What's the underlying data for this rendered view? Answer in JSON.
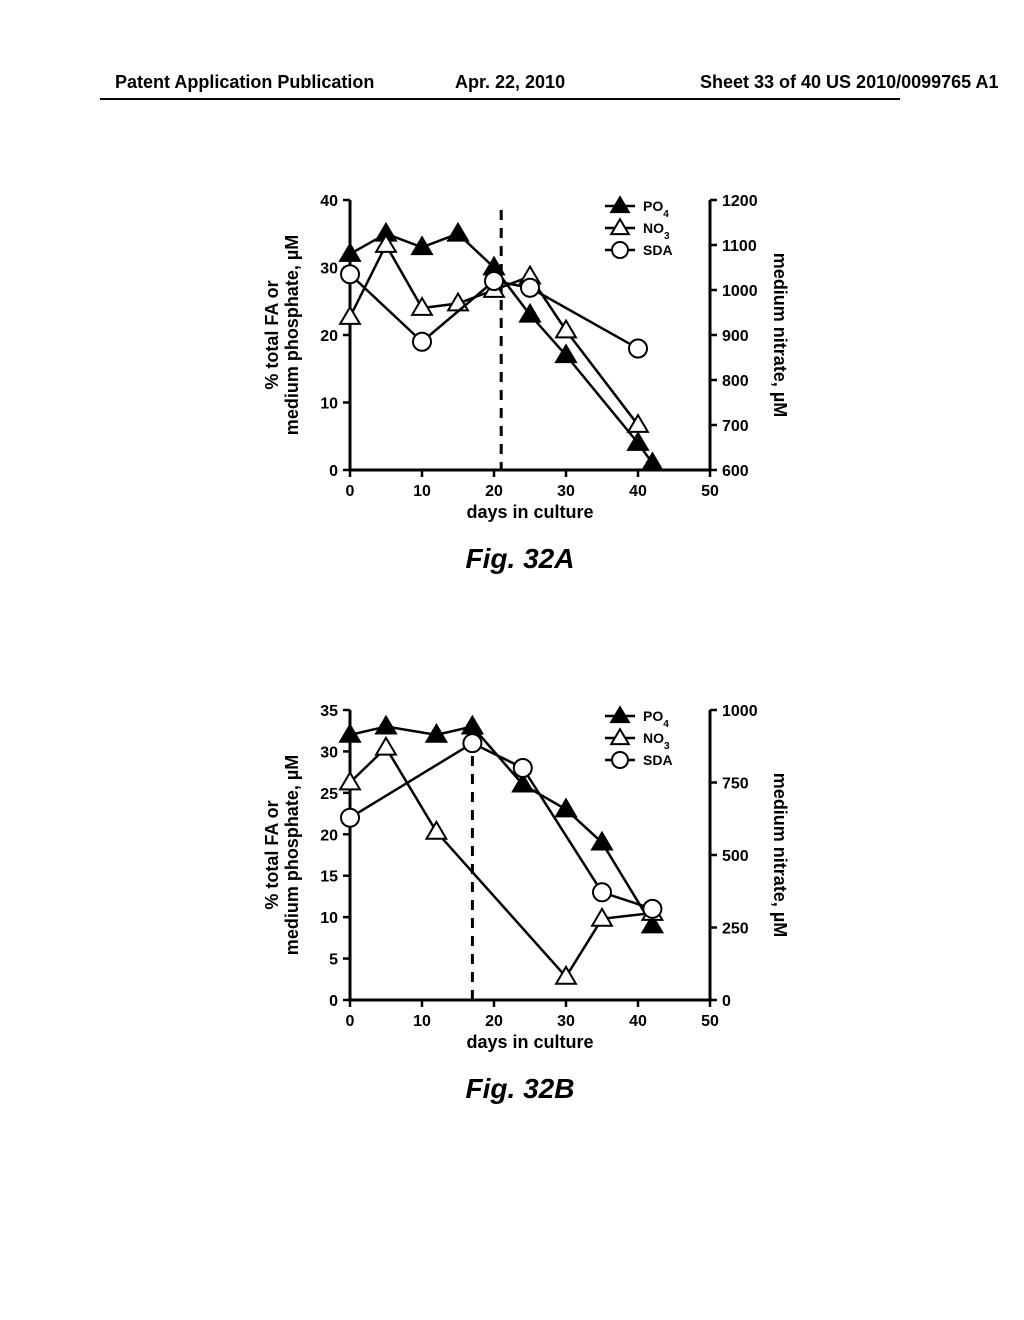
{
  "header": {
    "left": "Patent Application Publication",
    "center": "Apr. 22, 2010",
    "right": "Sheet 33 of 40     US 2010/0099765 A1"
  },
  "figA": {
    "caption": "Fig. 32A",
    "xlabel": "days in culture",
    "ylabel_left": "% total FA or\nmedium phosphate, µM",
    "ylabel_right": "medium nitrate, µM",
    "vline_x": 21,
    "xlim": [
      0,
      50
    ],
    "xtick_step": 10,
    "ylim_left": [
      0,
      40
    ],
    "ytick_left_step": 10,
    "ylim_right": [
      600,
      1200
    ],
    "ytick_right_step": 100,
    "label_fontsize": 18,
    "tick_fontsize": 16,
    "legend_fontsize": 14,
    "line_width": 2.5,
    "marker_size": 9,
    "background_color": "#ffffff",
    "axis_color": "#000000",
    "series": [
      {
        "name": "PO4",
        "sub": "4",
        "marker": "triangle-filled",
        "color": "#000000",
        "fill": "#000000",
        "axis": "left",
        "x": [
          0,
          5,
          10,
          15,
          20,
          25,
          30,
          40,
          42
        ],
        "y": [
          32,
          35,
          33,
          35,
          30,
          23,
          17,
          4,
          1
        ]
      },
      {
        "name": "NO3",
        "sub": "3",
        "marker": "triangle-open",
        "color": "#000000",
        "fill": "#ffffff",
        "axis": "right",
        "x": [
          0,
          5,
          10,
          15,
          20,
          25,
          30,
          40
        ],
        "y": [
          940,
          1100,
          960,
          970,
          1000,
          1030,
          910,
          700
        ]
      },
      {
        "name": "SDA",
        "sub": "",
        "marker": "circle-open",
        "color": "#000000",
        "fill": "#ffffff",
        "axis": "left",
        "x": [
          0,
          10,
          20,
          25,
          40
        ],
        "y": [
          29,
          19,
          28,
          27,
          18
        ]
      }
    ]
  },
  "figB": {
    "caption": "Fig. 32B",
    "xlabel": "days in culture",
    "ylabel_left": "% total FA or\nmedium phosphate, µM",
    "ylabel_right": "medium nitrate, µM",
    "vline_x": 17,
    "xlim": [
      0,
      50
    ],
    "xtick_step": 10,
    "ylim_left": [
      0,
      35
    ],
    "ytick_left_step": 5,
    "ylim_right": [
      0,
      1000
    ],
    "ytick_right_step": 250,
    "label_fontsize": 18,
    "tick_fontsize": 16,
    "legend_fontsize": 14,
    "line_width": 2.5,
    "marker_size": 9,
    "background_color": "#ffffff",
    "axis_color": "#000000",
    "series": [
      {
        "name": "PO4",
        "sub": "4",
        "marker": "triangle-filled",
        "color": "#000000",
        "fill": "#000000",
        "axis": "left",
        "x": [
          0,
          5,
          12,
          17,
          24,
          30,
          35,
          42
        ],
        "y": [
          32,
          33,
          32,
          33,
          26,
          23,
          19,
          9
        ]
      },
      {
        "name": "NO3",
        "sub": "3",
        "marker": "triangle-open",
        "color": "#000000",
        "fill": "#ffffff",
        "axis": "right",
        "x": [
          0,
          5,
          12,
          30,
          35,
          42
        ],
        "y": [
          750,
          870,
          580,
          80,
          280,
          300
        ]
      },
      {
        "name": "SDA",
        "sub": "",
        "marker": "circle-open",
        "color": "#000000",
        "fill": "#ffffff",
        "axis": "left",
        "x": [
          0,
          17,
          24,
          35,
          42
        ],
        "y": [
          22,
          31,
          28,
          13,
          11
        ]
      }
    ]
  }
}
